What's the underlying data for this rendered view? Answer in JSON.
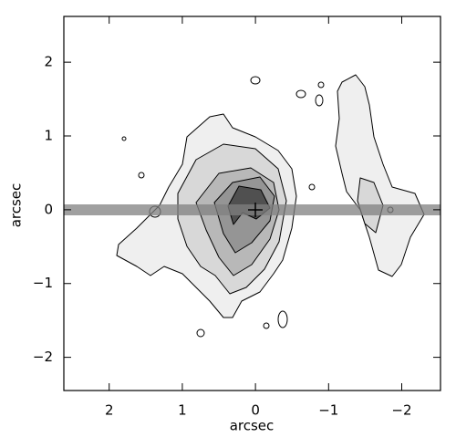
{
  "chart_data": {
    "type": "contour",
    "xlabel": "arcsec",
    "ylabel": "arcsec",
    "xlim": [
      2.62,
      -2.53
    ],
    "ylim": [
      -2.45,
      2.62
    ],
    "xticks": [
      2,
      1,
      0,
      {
        "value": -1,
        "label": "−1"
      },
      {
        "value": -2,
        "label": "−2"
      }
    ],
    "yticks": [
      {
        "value": -2,
        "label": "−2"
      },
      {
        "value": -1,
        "label": "−1"
      },
      0,
      1,
      2
    ]
  }
}
